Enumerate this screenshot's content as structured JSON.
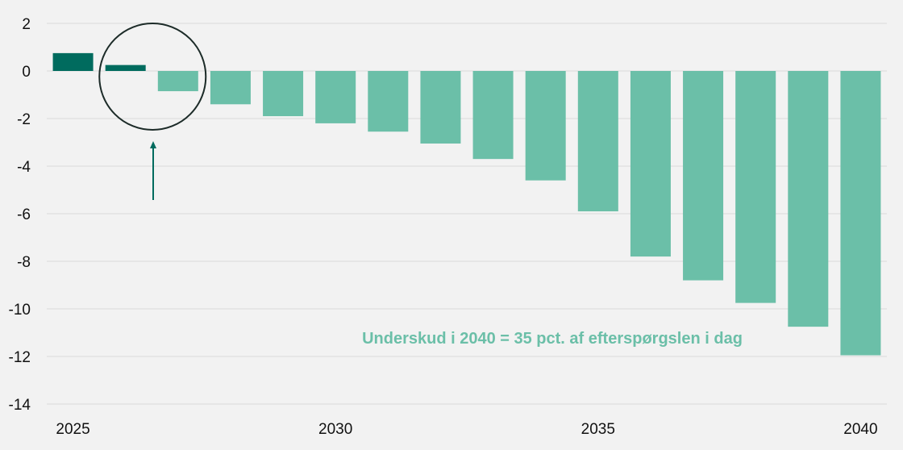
{
  "chart_data": {
    "type": "bar",
    "title": "",
    "xlabel": "",
    "ylabel": "",
    "ylim": [
      -14,
      2
    ],
    "yticks": [
      2,
      0,
      -2,
      -4,
      -6,
      -8,
      -10,
      -12,
      -14
    ],
    "grid": true,
    "categories": [
      "2025",
      "2026",
      "2027",
      "2028",
      "2029",
      "2030",
      "2031",
      "2032",
      "2033",
      "2034",
      "2035",
      "2036",
      "2037",
      "2038",
      "2039",
      "2040"
    ],
    "xtick_labels": [
      "2025",
      "2030",
      "2035",
      "2040"
    ],
    "values": [
      0.75,
      0.25,
      -0.85,
      -1.4,
      -1.9,
      -2.2,
      -2.55,
      -3.05,
      -3.7,
      -4.6,
      -5.9,
      -7.8,
      -8.8,
      -9.75,
      -10.75,
      -11.95
    ],
    "highlight_count": 2,
    "annotation": "Underskud i 2040 = 35 pct. af efterspørgslen i dag"
  },
  "colors": {
    "highlight": "#006b5e",
    "bar": "#6bbfa8",
    "annotation": "#6bbfa8",
    "circle": "#1c2b28",
    "arrow": "#006b5e",
    "grid": "#d9d9d9"
  }
}
